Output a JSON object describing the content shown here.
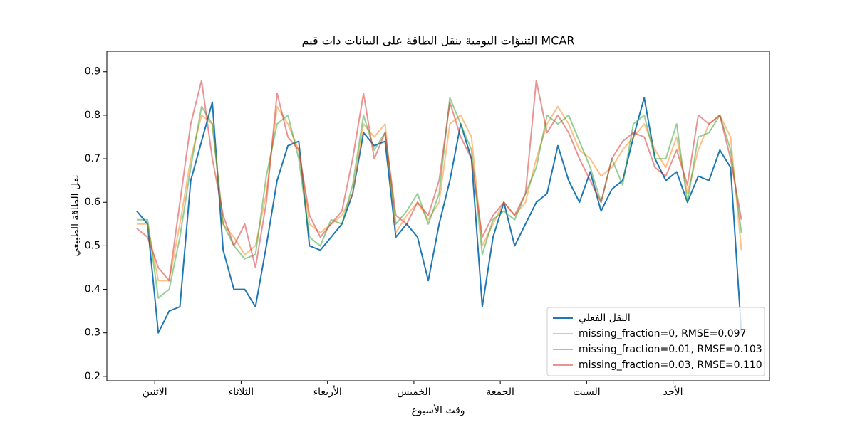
{
  "chart_data": {
    "type": "line",
    "title": "التنبؤات اليومية بنقل الطاقة على البيانات ذات قيم MCAR",
    "xlabel": "وقت الأسبوع",
    "ylabel": "نقل الطاقة الطبيعي",
    "x": [
      0,
      3,
      6,
      9,
      12,
      15,
      18,
      21,
      24,
      27,
      30,
      33,
      36,
      39,
      42,
      45,
      48,
      51,
      54,
      57,
      60,
      63,
      66,
      69,
      72,
      75,
      78,
      81,
      84,
      87,
      90,
      93,
      96,
      99,
      102,
      105,
      108,
      111,
      114,
      117,
      120,
      123,
      126,
      129,
      132,
      135,
      138,
      141,
      144,
      147,
      150,
      153,
      156,
      159,
      162,
      165,
      168
    ],
    "xlim": [
      -8.3,
      175.8
    ],
    "ylim": [
      0.19,
      0.947
    ],
    "xticks": [
      {
        "value": 5,
        "label": "الاثنين"
      },
      {
        "value": 29,
        "label": "الثلاثاء"
      },
      {
        "value": 53,
        "label": "الأربعاء"
      },
      {
        "value": 77,
        "label": "الخميس"
      },
      {
        "value": 101,
        "label": "الجمعة"
      },
      {
        "value": 125,
        "label": "السبت"
      },
      {
        "value": 149,
        "label": "الأحد"
      }
    ],
    "yticks": [
      0.2,
      0.3,
      0.4,
      0.5,
      0.6,
      0.7,
      0.8,
      0.9
    ],
    "legend": "lower right",
    "series": [
      {
        "name": "النقل الفعلي",
        "color": "#1f77b4",
        "opacity": 1,
        "values": [
          0.58,
          0.55,
          0.3,
          0.35,
          0.36,
          0.65,
          0.74,
          0.83,
          0.49,
          0.4,
          0.4,
          0.36,
          0.5,
          0.65,
          0.73,
          0.74,
          0.5,
          0.49,
          0.52,
          0.55,
          0.62,
          0.76,
          0.73,
          0.74,
          0.52,
          0.55,
          0.52,
          0.42,
          0.55,
          0.65,
          0.78,
          0.7,
          0.36,
          0.52,
          0.6,
          0.5,
          0.55,
          0.6,
          0.62,
          0.73,
          0.65,
          0.6,
          0.67,
          0.58,
          0.63,
          0.65,
          0.75,
          0.84,
          0.7,
          0.65,
          0.67,
          0.6,
          0.66,
          0.65,
          0.72,
          0.68,
          0.3
        ]
      },
      {
        "name": "missing_fraction=0, RMSE=0.097",
        "color": "#ff7f0e",
        "opacity": 0.5,
        "values": [
          0.55,
          0.55,
          0.42,
          0.42,
          0.55,
          0.7,
          0.8,
          0.78,
          0.55,
          0.52,
          0.48,
          0.5,
          0.62,
          0.82,
          0.78,
          0.72,
          0.55,
          0.53,
          0.55,
          0.57,
          0.62,
          0.78,
          0.75,
          0.78,
          0.53,
          0.57,
          0.6,
          0.56,
          0.6,
          0.78,
          0.8,
          0.75,
          0.5,
          0.55,
          0.6,
          0.57,
          0.6,
          0.7,
          0.78,
          0.82,
          0.78,
          0.72,
          0.7,
          0.66,
          0.68,
          0.72,
          0.75,
          0.78,
          0.72,
          0.68,
          0.75,
          0.62,
          0.72,
          0.78,
          0.8,
          0.75,
          0.49
        ]
      },
      {
        "name": "missing_fraction=0.01, RMSE=0.103",
        "color": "#2ca02c",
        "opacity": 0.5,
        "values": [
          0.56,
          0.56,
          0.38,
          0.4,
          0.52,
          0.68,
          0.82,
          0.78,
          0.55,
          0.5,
          0.47,
          0.48,
          0.66,
          0.78,
          0.8,
          0.7,
          0.52,
          0.5,
          0.56,
          0.55,
          0.64,
          0.8,
          0.72,
          0.76,
          0.55,
          0.58,
          0.62,
          0.55,
          0.62,
          0.84,
          0.78,
          0.72,
          0.48,
          0.56,
          0.58,
          0.56,
          0.62,
          0.68,
          0.8,
          0.78,
          0.8,
          0.74,
          0.68,
          0.6,
          0.7,
          0.64,
          0.78,
          0.8,
          0.7,
          0.7,
          0.78,
          0.6,
          0.75,
          0.76,
          0.8,
          0.72,
          0.53
        ]
      },
      {
        "name": "missing_fraction=0.03, RMSE=0.110",
        "color": "#d62728",
        "opacity": 0.5,
        "values": [
          0.54,
          0.52,
          0.45,
          0.42,
          0.6,
          0.78,
          0.88,
          0.7,
          0.57,
          0.5,
          0.55,
          0.45,
          0.6,
          0.85,
          0.75,
          0.72,
          0.57,
          0.52,
          0.55,
          0.58,
          0.7,
          0.85,
          0.7,
          0.76,
          0.57,
          0.55,
          0.6,
          0.57,
          0.65,
          0.83,
          0.75,
          0.7,
          0.52,
          0.57,
          0.6,
          0.57,
          0.62,
          0.88,
          0.76,
          0.8,
          0.76,
          0.7,
          0.65,
          0.6,
          0.7,
          0.74,
          0.76,
          0.75,
          0.68,
          0.66,
          0.72,
          0.64,
          0.8,
          0.78,
          0.8,
          0.7,
          0.56
        ]
      }
    ]
  }
}
